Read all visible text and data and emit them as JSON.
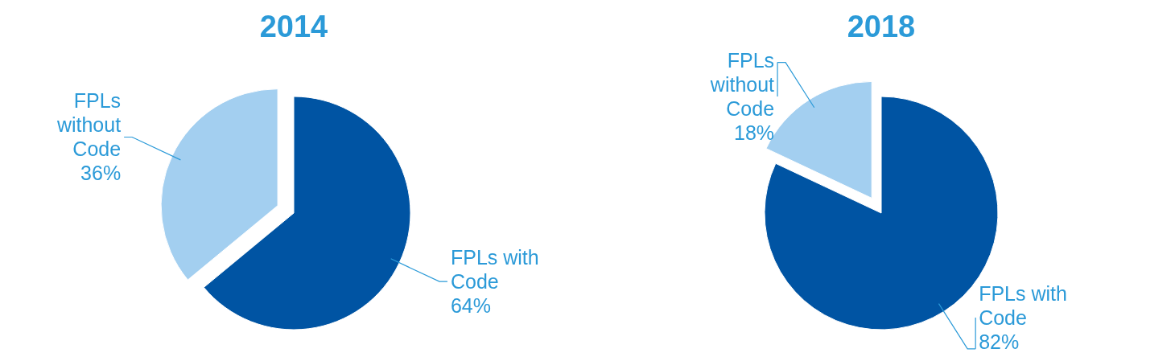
{
  "chart_data": [
    {
      "type": "pie",
      "title": "2014",
      "categories": [
        "FPLs with Code",
        "FPLs without Code"
      ],
      "values": [
        64,
        36
      ],
      "value_labels": [
        "64%",
        "36%"
      ],
      "colors": [
        "#0054a3",
        "#a3cff0"
      ]
    },
    {
      "type": "pie",
      "title": "2018",
      "categories": [
        "FPLs with Code",
        "FPLs without Code"
      ],
      "values": [
        82,
        18
      ],
      "value_labels": [
        "82%",
        "18%"
      ],
      "colors": [
        "#0054a3",
        "#a3cff0"
      ]
    }
  ]
}
